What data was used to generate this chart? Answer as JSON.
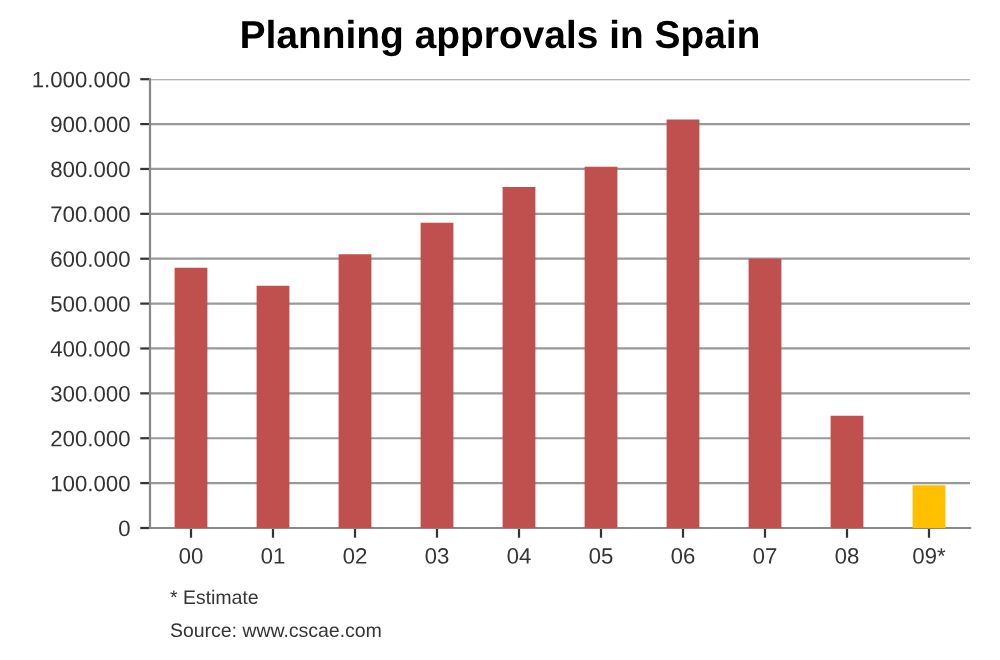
{
  "chart_data": {
    "type": "bar",
    "title": "Planning approvals in Spain",
    "categories": [
      "00",
      "01",
      "02",
      "03",
      "04",
      "05",
      "06",
      "07",
      "08",
      "09*"
    ],
    "values": [
      580000,
      540000,
      610000,
      680000,
      760000,
      805000,
      910000,
      600000,
      250000,
      95000
    ],
    "colors": [
      "#c0504d",
      "#c0504d",
      "#c0504d",
      "#c0504d",
      "#c0504d",
      "#c0504d",
      "#c0504d",
      "#c0504d",
      "#c0504d",
      "#ffc000"
    ],
    "ylim": [
      0,
      1000000
    ],
    "yticks": [
      0,
      {
        "value": 100000,
        "label": "100.000"
      },
      {
        "value": 200000,
        "label": "200.000"
      },
      {
        "value": 300000,
        "label": "300.000"
      },
      {
        "value": 400000,
        "label": "400.000"
      },
      {
        "value": 500000,
        "label": "500.000"
      },
      {
        "value": 600000,
        "label": "600.000"
      },
      {
        "value": 700000,
        "label": "700.000"
      },
      {
        "value": 800000,
        "label": "800.000"
      },
      {
        "value": 900000,
        "label": "900.000"
      },
      {
        "value": 1000000,
        "label": "1.000.000"
      }
    ],
    "grid": "y",
    "legend": false,
    "annotations": [
      "* Estimate",
      "Source: www.cscae.com"
    ]
  }
}
